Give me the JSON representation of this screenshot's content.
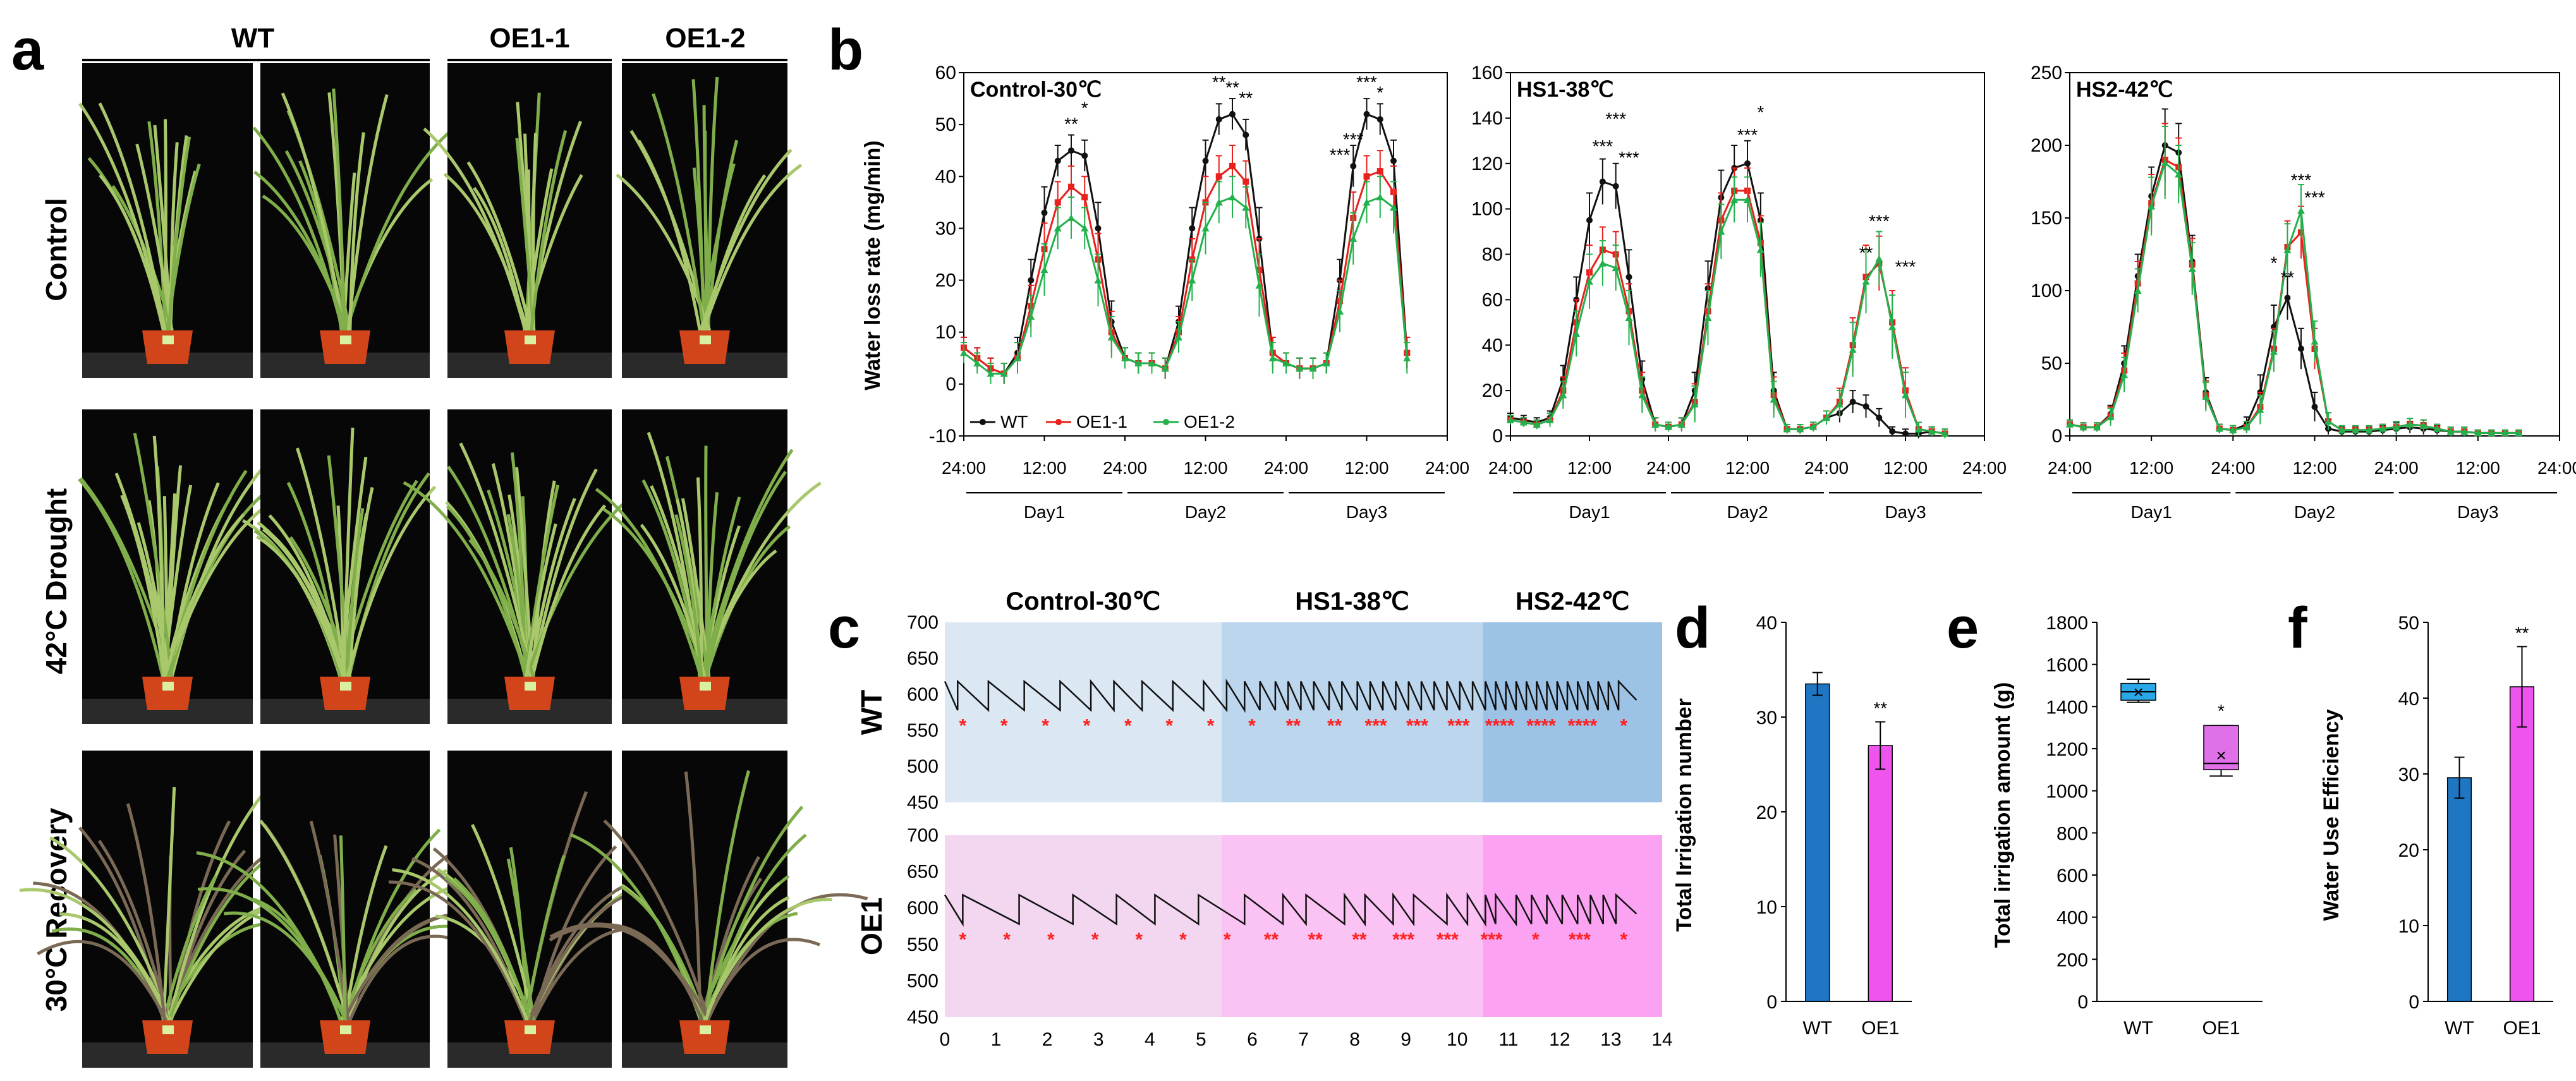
{
  "panels": {
    "a": "a",
    "b": "b",
    "c": "c",
    "d": "d",
    "e": "e",
    "f": "f"
  },
  "panel_a": {
    "columns": [
      "WT",
      "OE1-1",
      "OE1-2"
    ],
    "rows": [
      "Control",
      "42°C Drought",
      "30°C Recovery"
    ]
  },
  "colors": {
    "WT": "#111111",
    "OE1-1": "#e8211c",
    "OE1-2": "#22b14c",
    "bar_wt": "#1f77c4",
    "bar_oe": "#ee55ee",
    "box_wt": "#29a8e8",
    "box_oe": "#e070e8"
  },
  "chart_data": [
    {
      "id": "b1",
      "type": "line",
      "title": "Control-30℃",
      "ylabel": "Water loss rate (mg/min)",
      "ylim": [
        -10,
        60
      ],
      "yticks": [
        -10,
        0,
        10,
        20,
        30,
        40,
        50,
        60
      ],
      "xticks": [
        "24:00",
        "12:00",
        "24:00",
        "12:00",
        "24:00",
        "12:00",
        "24:00"
      ],
      "day_labels": [
        "Day1",
        "Day2",
        "Day3"
      ],
      "legend": [
        "WT",
        "OE1-1",
        "OE1-2"
      ],
      "x_hours": [
        0,
        2,
        4,
        6,
        8,
        10,
        12,
        14,
        16,
        18,
        20,
        22,
        24,
        26,
        28,
        30,
        32,
        34,
        36,
        38,
        40,
        42,
        44,
        46,
        48,
        50,
        52,
        54,
        56,
        58,
        60,
        62,
        64,
        66
      ],
      "series": [
        {
          "name": "WT",
          "values": [
            7,
            5,
            3,
            2,
            6,
            20,
            33,
            43,
            45,
            44,
            30,
            12,
            5,
            4,
            4,
            3,
            12,
            30,
            43,
            51,
            52,
            48,
            28,
            6,
            4,
            3,
            3,
            4,
            20,
            42,
            52,
            51,
            43,
            6
          ],
          "err": [
            2,
            2,
            2,
            2,
            3,
            4,
            5,
            3,
            3,
            3,
            5,
            4,
            2,
            2,
            2,
            2,
            3,
            4,
            4,
            3,
            3,
            3,
            6,
            3,
            2,
            2,
            2,
            2,
            4,
            4,
            3,
            3,
            4,
            3
          ]
        },
        {
          "name": "OE1-1",
          "values": [
            7,
            5,
            3,
            2,
            5,
            15,
            26,
            35,
            38,
            36,
            24,
            10,
            5,
            4,
            4,
            3,
            10,
            24,
            35,
            40,
            42,
            39,
            22,
            6,
            4,
            3,
            3,
            4,
            16,
            32,
            40,
            41,
            37,
            6
          ],
          "err": [
            2,
            2,
            2,
            2,
            3,
            4,
            5,
            4,
            4,
            4,
            5,
            4,
            2,
            2,
            2,
            2,
            3,
            4,
            5,
            4,
            4,
            4,
            6,
            3,
            2,
            2,
            2,
            2,
            4,
            5,
            4,
            4,
            5,
            3
          ]
        },
        {
          "name": "OE1-2",
          "values": [
            6,
            4,
            2,
            2,
            5,
            13,
            22,
            30,
            32,
            30,
            20,
            9,
            5,
            4,
            4,
            3,
            9,
            20,
            30,
            35,
            36,
            34,
            19,
            5,
            4,
            3,
            3,
            4,
            14,
            28,
            35,
            36,
            34,
            5
          ],
          "err": [
            2,
            2,
            2,
            2,
            3,
            4,
            5,
            4,
            4,
            4,
            5,
            4,
            2,
            2,
            2,
            2,
            3,
            4,
            5,
            4,
            4,
            4,
            6,
            3,
            2,
            2,
            2,
            2,
            4,
            5,
            4,
            4,
            5,
            3
          ]
        }
      ],
      "annotations": [
        "*",
        "**",
        "***"
      ]
    },
    {
      "id": "b2",
      "type": "line",
      "title": "HS1-38℃",
      "ylim": [
        0,
        160
      ],
      "yticks": [
        0,
        20,
        40,
        60,
        80,
        100,
        120,
        140,
        160
      ],
      "xticks": [
        "24:00",
        "12:00",
        "24:00",
        "12:00",
        "24:00",
        "12:00",
        "24:00"
      ],
      "day_labels": [
        "Day1",
        "Day2",
        "Day3"
      ],
      "x_hours": [
        0,
        2,
        4,
        6,
        8,
        10,
        12,
        14,
        16,
        18,
        20,
        22,
        24,
        26,
        28,
        30,
        32,
        34,
        36,
        38,
        40,
        42,
        44,
        46,
        48,
        50,
        52,
        54,
        56,
        58,
        60,
        62,
        64,
        66
      ],
      "series": [
        {
          "name": "WT",
          "values": [
            8,
            7,
            6,
            8,
            25,
            60,
            95,
            112,
            110,
            70,
            25,
            5,
            4,
            5,
            20,
            65,
            105,
            118,
            120,
            95,
            20,
            3,
            3,
            4,
            8,
            10,
            15,
            13,
            8,
            2,
            1,
            1,
            2,
            1
          ],
          "err": [
            2,
            2,
            2,
            3,
            6,
            10,
            12,
            10,
            10,
            12,
            8,
            3,
            2,
            3,
            8,
            12,
            12,
            10,
            10,
            12,
            8,
            2,
            2,
            2,
            3,
            4,
            5,
            5,
            4,
            2,
            2,
            2,
            2,
            2
          ]
        },
        {
          "name": "OE1-1",
          "values": [
            7,
            6,
            5,
            7,
            20,
            50,
            72,
            82,
            80,
            55,
            20,
            5,
            4,
            5,
            15,
            55,
            95,
            108,
            108,
            85,
            18,
            3,
            3,
            4,
            8,
            15,
            40,
            70,
            76,
            50,
            20,
            3,
            2,
            1
          ],
          "err": [
            2,
            2,
            2,
            3,
            6,
            10,
            12,
            10,
            10,
            12,
            8,
            3,
            2,
            3,
            8,
            12,
            12,
            10,
            10,
            12,
            8,
            2,
            2,
            2,
            3,
            6,
            12,
            14,
            12,
            14,
            10,
            3,
            2,
            2
          ]
        },
        {
          "name": "OE1-2",
          "values": [
            7,
            6,
            5,
            7,
            18,
            45,
            68,
            76,
            74,
            52,
            18,
            5,
            4,
            5,
            14,
            52,
            90,
            104,
            104,
            82,
            16,
            3,
            3,
            4,
            8,
            14,
            38,
            68,
            78,
            48,
            18,
            3,
            2,
            1
          ],
          "err": [
            2,
            2,
            2,
            3,
            6,
            10,
            12,
            10,
            10,
            12,
            8,
            3,
            2,
            3,
            8,
            12,
            12,
            10,
            10,
            12,
            8,
            2,
            2,
            2,
            3,
            6,
            12,
            14,
            12,
            14,
            10,
            3,
            2,
            2
          ]
        }
      ],
      "annotations": [
        "*",
        "**",
        "***"
      ]
    },
    {
      "id": "b3",
      "type": "line",
      "title": "HS2-42℃",
      "ylim": [
        0,
        250
      ],
      "yticks": [
        0,
        50,
        100,
        150,
        200,
        250
      ],
      "xticks": [
        "24:00",
        "12:00",
        "24:00",
        "12:00",
        "24:00",
        "12:00",
        "24:00"
      ],
      "day_labels": [
        "Day1",
        "Day2",
        "Day3"
      ],
      "x_hours": [
        0,
        2,
        4,
        6,
        8,
        10,
        12,
        14,
        16,
        18,
        20,
        22,
        24,
        26,
        28,
        30,
        32,
        34,
        36,
        38,
        40,
        42,
        44,
        46,
        48,
        50,
        52,
        54,
        56,
        58,
        60,
        62,
        64,
        66
      ],
      "series": [
        {
          "name": "WT",
          "values": [
            8,
            6,
            6,
            15,
            50,
            110,
            165,
            200,
            195,
            120,
            30,
            5,
            4,
            8,
            30,
            75,
            95,
            60,
            20,
            5,
            3,
            3,
            3,
            4,
            5,
            6,
            5,
            4,
            3,
            3,
            2,
            2,
            2,
            2
          ],
          "err": [
            3,
            3,
            3,
            6,
            12,
            15,
            20,
            25,
            20,
            18,
            10,
            3,
            3,
            5,
            12,
            15,
            15,
            14,
            10,
            4,
            3,
            3,
            3,
            3,
            4,
            4,
            4,
            3,
            3,
            3,
            2,
            2,
            2,
            2
          ]
        },
        {
          "name": "OE1-1",
          "values": [
            8,
            6,
            6,
            14,
            45,
            105,
            160,
            190,
            185,
            118,
            28,
            5,
            4,
            6,
            20,
            60,
            130,
            140,
            60,
            10,
            4,
            4,
            4,
            5,
            6,
            8,
            7,
            5,
            3,
            3,
            2,
            2,
            2,
            2
          ],
          "err": [
            3,
            3,
            3,
            6,
            12,
            15,
            20,
            25,
            20,
            18,
            10,
            3,
            3,
            4,
            10,
            14,
            18,
            18,
            14,
            6,
            3,
            3,
            3,
            3,
            4,
            4,
            4,
            3,
            3,
            3,
            2,
            2,
            2,
            2
          ]
        },
        {
          "name": "OE1-2",
          "values": [
            8,
            6,
            6,
            13,
            42,
            100,
            158,
            188,
            180,
            115,
            27,
            5,
            4,
            6,
            18,
            58,
            128,
            155,
            65,
            10,
            4,
            4,
            4,
            5,
            6,
            8,
            7,
            5,
            3,
            3,
            2,
            2,
            2,
            2
          ],
          "err": [
            3,
            3,
            3,
            6,
            12,
            15,
            20,
            25,
            20,
            18,
            10,
            3,
            3,
            4,
            10,
            14,
            18,
            18,
            14,
            6,
            3,
            3,
            3,
            3,
            4,
            4,
            4,
            3,
            3,
            3,
            2,
            2,
            2,
            2
          ]
        }
      ],
      "annotations": [
        "*",
        "**",
        "***"
      ]
    },
    {
      "id": "c",
      "type": "line",
      "phases": [
        "Control-30℃",
        "HS1-38℃",
        "HS2-42℃"
      ],
      "rows": [
        "WT",
        "OE1"
      ],
      "ylim": [
        450,
        700
      ],
      "yticks": [
        450,
        500,
        550,
        600,
        650,
        700
      ],
      "xlim": [
        0,
        14
      ],
      "xticks": [
        0,
        1,
        2,
        3,
        4,
        5,
        6,
        7,
        8,
        9,
        10,
        11,
        12,
        13,
        14
      ],
      "WT_irrigation_days": [
        0.25,
        0.85,
        1.55,
        2.25,
        2.85,
        3.3,
        3.85,
        4.45,
        5.05,
        5.5,
        5.85,
        6.15,
        6.45,
        6.7,
        6.95,
        7.2,
        7.5,
        7.75,
        8.05,
        8.3,
        8.55,
        8.8,
        9.05,
        9.3,
        9.55,
        9.8,
        10.05,
        10.3,
        10.55,
        10.75,
        10.95,
        11.15,
        11.35,
        11.55,
        11.75,
        11.95,
        12.15,
        12.35,
        12.55,
        12.75,
        12.95,
        13.15
      ],
      "OE1_irrigation_days": [
        0.35,
        1.45,
        2.5,
        3.35,
        4.1,
        4.95,
        5.85,
        6.6,
        7.05,
        7.8,
        8.2,
        8.75,
        9.15,
        9.8,
        10.2,
        10.55,
        10.75,
        11.15,
        11.45,
        11.75,
        12.05,
        12.35,
        12.6,
        12.85,
        13.1
      ],
      "WT_star_groups": [
        "*",
        "*",
        "*",
        "*",
        "*",
        "*",
        "*",
        "*",
        "**",
        "**",
        "***",
        "***",
        "***",
        "****",
        "****",
        "****",
        "*"
      ],
      "OE1_star_groups": [
        "*",
        "*",
        "*",
        "*",
        "*",
        "*",
        "*",
        "**",
        "**",
        "**",
        "***",
        "***",
        "***",
        "*",
        "***",
        "*"
      ]
    },
    {
      "id": "d",
      "type": "bar",
      "ylabel": "Total Irrigation number",
      "categories": [
        "WT",
        "OE1"
      ],
      "values": [
        33.5,
        27
      ],
      "err": [
        1.2,
        2.5
      ],
      "ylim": [
        0,
        40
      ],
      "yticks": [
        0,
        10,
        20,
        30,
        40
      ],
      "annotation": "**"
    },
    {
      "id": "e",
      "type": "box",
      "ylabel": "Total irrigation amount (g)",
      "categories": [
        "WT",
        "OE1"
      ],
      "boxes": [
        {
          "min": 1420,
          "q1": 1430,
          "median": 1470,
          "q3": 1510,
          "max": 1530,
          "mean": 1470
        },
        {
          "min": 1070,
          "q1": 1100,
          "median": 1130,
          "q3": 1310,
          "max": 1310,
          "mean": 1170
        }
      ],
      "ylim": [
        0,
        1800
      ],
      "yticks": [
        0,
        200,
        400,
        600,
        800,
        1000,
        1200,
        1400,
        1600,
        1800
      ],
      "annotation": "*"
    },
    {
      "id": "f",
      "type": "bar",
      "ylabel": "Water Use Efficiency",
      "categories": [
        "WT",
        "OE1"
      ],
      "values": [
        29.5,
        41.5
      ],
      "err": [
        2.7,
        5.3
      ],
      "ylim": [
        0,
        50
      ],
      "yticks": [
        0,
        10,
        20,
        30,
        40,
        50
      ],
      "annotation": "**"
    }
  ]
}
